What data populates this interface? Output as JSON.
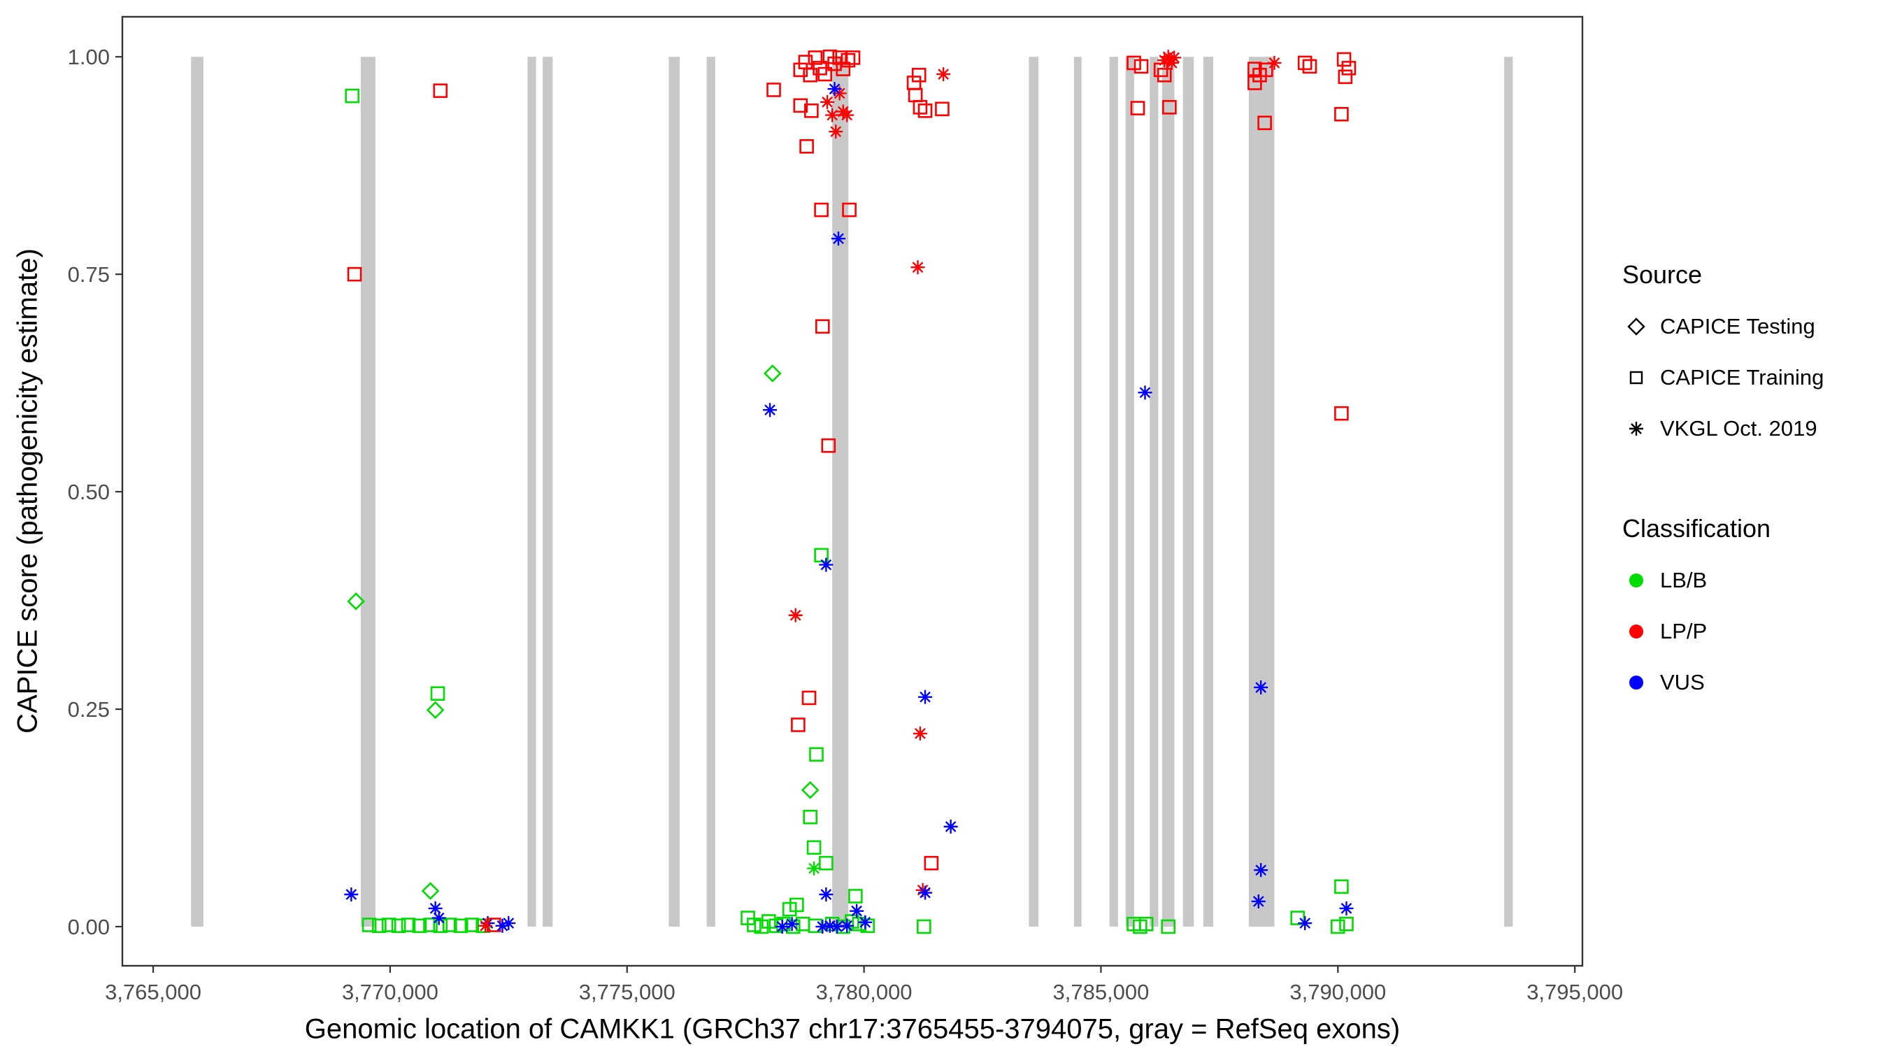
{
  "chart_data": {
    "type": "scatter",
    "title": "",
    "xlabel": "Genomic location of CAMKK1 (GRCh37 chr17:3765455-3794075, gray = RefSeq exons)",
    "ylabel": "CAPICE score (pathogenicity estimate)",
    "xlim": [
      3764350,
      3795160
    ],
    "ylim": [
      -0.045,
      1.046
    ],
    "grid": false,
    "x_ticks": [
      {
        "value": 3765000,
        "label": "3,765,000"
      },
      {
        "value": 3770000,
        "label": "3,770,000"
      },
      {
        "value": 3775000,
        "label": "3,775,000"
      },
      {
        "value": 3780000,
        "label": "3,780,000"
      },
      {
        "value": 3785000,
        "label": "3,785,000"
      },
      {
        "value": 3790000,
        "label": "3,790,000"
      },
      {
        "value": 3795000,
        "label": "3,795,000"
      }
    ],
    "y_ticks": [
      {
        "value": 0.0,
        "label": "0.00"
      },
      {
        "value": 0.25,
        "label": "0.25"
      },
      {
        "value": 0.5,
        "label": "0.50"
      },
      {
        "value": 0.75,
        "label": "0.75"
      },
      {
        "value": 1.0,
        "label": "1.00"
      }
    ],
    "exon_color": "#C8C8C8",
    "exons": [
      [
        3765800,
        3766060
      ],
      [
        3769380,
        3769690
      ],
      [
        3772900,
        3773080
      ],
      [
        3773220,
        3773430
      ],
      [
        3775880,
        3776110
      ],
      [
        3776680,
        3776860
      ],
      [
        3779330,
        3779670
      ],
      [
        3783480,
        3783680
      ],
      [
        3784430,
        3784590
      ],
      [
        3785180,
        3785360
      ],
      [
        3785520,
        3785700
      ],
      [
        3786030,
        3786210
      ],
      [
        3786290,
        3786550
      ],
      [
        3786730,
        3786960
      ],
      [
        3787160,
        3787370
      ],
      [
        3788120,
        3788660
      ],
      [
        3793510,
        3793690
      ]
    ],
    "legend": {
      "source_title": "Source",
      "sources": [
        {
          "id": "testing",
          "label": "CAPICE Testing",
          "shape": "diamond"
        },
        {
          "id": "training",
          "label": "CAPICE Training",
          "shape": "square"
        },
        {
          "id": "vkgl",
          "label": "VKGL Oct. 2019",
          "shape": "asterisk"
        }
      ],
      "class_title": "Classification",
      "classes": [
        {
          "id": "LB/B",
          "label": "LB/B",
          "color": "#00DD00"
        },
        {
          "id": "LP/P",
          "label": "LP/P",
          "color": "#FF0000"
        },
        {
          "id": "VUS",
          "label": "VUS",
          "color": "#0000FF"
        }
      ]
    },
    "points_format": [
      "genomic_position",
      "capice_score",
      "source",
      "classification"
    ],
    "points": [
      [
        3769200,
        0.955,
        "training",
        "LB/B"
      ],
      [
        3769250,
        0.75,
        "training",
        "LP/P"
      ],
      [
        3769280,
        0.374,
        "testing",
        "LB/B"
      ],
      [
        3769180,
        0.037,
        "vkgl",
        "VUS"
      ],
      [
        3769560,
        0.002,
        "training",
        "LB/B"
      ],
      [
        3769770,
        0.001,
        "training",
        "LB/B"
      ],
      [
        3769975,
        0.002,
        "training",
        "LB/B"
      ],
      [
        3770180,
        0.001,
        "training",
        "LB/B"
      ],
      [
        3770385,
        0.002,
        "training",
        "LB/B"
      ],
      [
        3770620,
        0.001,
        "training",
        "LB/B"
      ],
      [
        3770850,
        0.002,
        "training",
        "LB/B"
      ],
      [
        3771060,
        0.001,
        "training",
        "LB/B"
      ],
      [
        3771260,
        0.002,
        "training",
        "LB/B"
      ],
      [
        3771495,
        0.001,
        "training",
        "LB/B"
      ],
      [
        3771725,
        0.002,
        "training",
        "LB/B"
      ],
      [
        3771960,
        0.001,
        "training",
        "LB/B"
      ],
      [
        3771060,
        0.961,
        "training",
        "LP/P"
      ],
      [
        3771005,
        0.268,
        "training",
        "LB/B"
      ],
      [
        3770955,
        0.249,
        "testing",
        "LB/B"
      ],
      [
        3770850,
        0.041,
        "testing",
        "LB/B"
      ],
      [
        3770955,
        0.021,
        "vkgl",
        "VUS"
      ],
      [
        3771030,
        0.01,
        "vkgl",
        "VUS"
      ],
      [
        3772060,
        0.004,
        "vkgl",
        "VUS"
      ],
      [
        3772010,
        0.001,
        "vkgl",
        "LP/P"
      ],
      [
        3772190,
        0.002,
        "training",
        "LP/P"
      ],
      [
        3772370,
        0.001,
        "vkgl",
        "VUS"
      ],
      [
        3772500,
        0.004,
        "vkgl",
        "VUS"
      ],
      [
        3778095,
        0.962,
        "training",
        "LP/P"
      ],
      [
        3778660,
        0.985,
        "training",
        "LP/P"
      ],
      [
        3778765,
        0.994,
        "training",
        "LP/P"
      ],
      [
        3778865,
        0.979,
        "training",
        "LP/P"
      ],
      [
        3778970,
        0.999,
        "training",
        "LP/P"
      ],
      [
        3779070,
        0.987,
        "training",
        "LP/P"
      ],
      [
        3779175,
        0.98,
        "training",
        "LP/P"
      ],
      [
        3779280,
        1.0,
        "training",
        "LP/P"
      ],
      [
        3779380,
        0.992,
        "training",
        "LP/P"
      ],
      [
        3779485,
        0.999,
        "training",
        "LP/P"
      ],
      [
        3779560,
        0.986,
        "training",
        "LP/P"
      ],
      [
        3779665,
        0.996,
        "training",
        "LP/P"
      ],
      [
        3779770,
        0.999,
        "training",
        "LP/P"
      ],
      [
        3778660,
        0.944,
        "training",
        "LP/P"
      ],
      [
        3778890,
        0.938,
        "training",
        "LP/P"
      ],
      [
        3778790,
        0.897,
        "training",
        "LP/P"
      ],
      [
        3779225,
        0.948,
        "vkgl",
        "LP/P"
      ],
      [
        3779330,
        0.933,
        "vkgl",
        "LP/P"
      ],
      [
        3779405,
        0.914,
        "vkgl",
        "LP/P"
      ],
      [
        3779485,
        0.958,
        "vkgl",
        "LP/P"
      ],
      [
        3779560,
        0.937,
        "vkgl",
        "LP/P"
      ],
      [
        3779640,
        0.933,
        "vkgl",
        "LP/P"
      ],
      [
        3779380,
        0.963,
        "vkgl",
        "VUS"
      ],
      [
        3779100,
        0.824,
        "training",
        "LP/P"
      ],
      [
        3779690,
        0.824,
        "training",
        "LP/P"
      ],
      [
        3779460,
        0.791,
        "vkgl",
        "VUS"
      ],
      [
        3779125,
        0.69,
        "training",
        "LP/P"
      ],
      [
        3778070,
        0.636,
        "testing",
        "LB/B"
      ],
      [
        3778015,
        0.594,
        "vkgl",
        "VUS"
      ],
      [
        3779250,
        0.553,
        "training",
        "LP/P"
      ],
      [
        3779100,
        0.427,
        "training",
        "LB/B"
      ],
      [
        3779200,
        0.416,
        "vkgl",
        "VUS"
      ],
      [
        3778555,
        0.358,
        "vkgl",
        "LP/P"
      ],
      [
        3778840,
        0.263,
        "training",
        "LP/P"
      ],
      [
        3778610,
        0.232,
        "training",
        "LP/P"
      ],
      [
        3778995,
        0.198,
        "training",
        "LB/B"
      ],
      [
        3778865,
        0.157,
        "testing",
        "LB/B"
      ],
      [
        3778865,
        0.126,
        "training",
        "LB/B"
      ],
      [
        3778945,
        0.091,
        "training",
        "LB/B"
      ],
      [
        3778945,
        0.067,
        "vkgl",
        "LB/B"
      ],
      [
        3779200,
        0.073,
        "training",
        "LB/B"
      ],
      [
        3777550,
        0.01,
        "training",
        "LB/B"
      ],
      [
        3777680,
        0.002,
        "training",
        "LB/B"
      ],
      [
        3777835,
        0.0,
        "training",
        "LB/B"
      ],
      [
        3777990,
        0.006,
        "training",
        "LB/B"
      ],
      [
        3778145,
        0.001,
        "training",
        "LB/B"
      ],
      [
        3778300,
        0.003,
        "training",
        "LB/B"
      ],
      [
        3778430,
        0.02,
        "training",
        "LB/B"
      ],
      [
        3778580,
        0.025,
        "training",
        "LB/B"
      ],
      [
        3778505,
        0.0,
        "training",
        "LB/B"
      ],
      [
        3778710,
        0.003,
        "training",
        "LB/B"
      ],
      [
        3778970,
        0.001,
        "training",
        "LB/B"
      ],
      [
        3779330,
        0.003,
        "training",
        "LB/B"
      ],
      [
        3779560,
        0.0,
        "training",
        "LB/B"
      ],
      [
        3779745,
        0.006,
        "training",
        "LB/B"
      ],
      [
        3779900,
        0.003,
        "training",
        "LB/B"
      ],
      [
        3780075,
        0.001,
        "training",
        "LB/B"
      ],
      [
        3778275,
        0.0,
        "vkgl",
        "VUS"
      ],
      [
        3778480,
        0.003,
        "vkgl",
        "VUS"
      ],
      [
        3779125,
        0.0,
        "vkgl",
        "VUS"
      ],
      [
        3779280,
        0.001,
        "vkgl",
        "VUS"
      ],
      [
        3779430,
        0.0,
        "vkgl",
        "VUS"
      ],
      [
        3779640,
        0.001,
        "vkgl",
        "VUS"
      ],
      [
        3779845,
        0.018,
        "vkgl",
        "VUS"
      ],
      [
        3780025,
        0.005,
        "vkgl",
        "VUS"
      ],
      [
        3779200,
        0.037,
        "vkgl",
        "VUS"
      ],
      [
        3779820,
        0.035,
        "training",
        "LB/B"
      ],
      [
        3781055,
        0.97,
        "training",
        "LP/P"
      ],
      [
        3781160,
        0.979,
        "training",
        "LP/P"
      ],
      [
        3781085,
        0.956,
        "training",
        "LP/P"
      ],
      [
        3781185,
        0.942,
        "training",
        "LP/P"
      ],
      [
        3781290,
        0.938,
        "training",
        "LP/P"
      ],
      [
        3781675,
        0.98,
        "vkgl",
        "LP/P"
      ],
      [
        3781650,
        0.94,
        "training",
        "LP/P"
      ],
      [
        3781135,
        0.758,
        "vkgl",
        "LP/P"
      ],
      [
        3781290,
        0.264,
        "vkgl",
        "VUS"
      ],
      [
        3781185,
        0.222,
        "vkgl",
        "LP/P"
      ],
      [
        3781830,
        0.115,
        "vkgl",
        "VUS"
      ],
      [
        3781420,
        0.073,
        "training",
        "LP/P"
      ],
      [
        3781240,
        0.042,
        "vkgl",
        "LP/P"
      ],
      [
        3781290,
        0.039,
        "vkgl",
        "VUS"
      ],
      [
        3781265,
        0.0,
        "training",
        "LB/B"
      ],
      [
        3785695,
        0.993,
        "training",
        "LP/P"
      ],
      [
        3785850,
        0.989,
        "training",
        "LP/P"
      ],
      [
        3785775,
        0.941,
        "training",
        "LP/P"
      ],
      [
        3786340,
        0.996,
        "vkgl",
        "LP/P"
      ],
      [
        3786420,
        1.0,
        "vkgl",
        "LP/P"
      ],
      [
        3786495,
        0.993,
        "vkgl",
        "LP/P"
      ],
      [
        3786545,
        0.999,
        "vkgl",
        "LP/P"
      ],
      [
        3786265,
        0.985,
        "training",
        "LP/P"
      ],
      [
        3786340,
        0.979,
        "training",
        "LP/P"
      ],
      [
        3786445,
        0.942,
        "training",
        "LP/P"
      ],
      [
        3785930,
        0.614,
        "vkgl",
        "VUS"
      ],
      [
        3785695,
        0.003,
        "training",
        "LB/B"
      ],
      [
        3785825,
        0.0,
        "training",
        "LB/B"
      ],
      [
        3785955,
        0.003,
        "training",
        "LB/B"
      ],
      [
        3786420,
        0.0,
        "training",
        "LB/B"
      ],
      [
        3788245,
        0.986,
        "training",
        "LP/P"
      ],
      [
        3788350,
        0.979,
        "training",
        "LP/P"
      ],
      [
        3788245,
        0.97,
        "training",
        "LP/P"
      ],
      [
        3788480,
        0.985,
        "training",
        "LP/P"
      ],
      [
        3788660,
        0.993,
        "vkgl",
        "LP/P"
      ],
      [
        3788455,
        0.924,
        "training",
        "LP/P"
      ],
      [
        3789305,
        0.993,
        "training",
        "LP/P"
      ],
      [
        3789405,
        0.989,
        "training",
        "LP/P"
      ],
      [
        3790130,
        0.997,
        "training",
        "LP/P"
      ],
      [
        3790230,
        0.987,
        "training",
        "LP/P"
      ],
      [
        3790155,
        0.977,
        "training",
        "LP/P"
      ],
      [
        3790075,
        0.934,
        "training",
        "LP/P"
      ],
      [
        3790075,
        0.59,
        "training",
        "LP/P"
      ],
      [
        3788375,
        0.275,
        "vkgl",
        "VUS"
      ],
      [
        3788375,
        0.065,
        "vkgl",
        "VUS"
      ],
      [
        3788325,
        0.029,
        "vkgl",
        "VUS"
      ],
      [
        3789150,
        0.01,
        "training",
        "LB/B"
      ],
      [
        3789305,
        0.004,
        "vkgl",
        "VUS"
      ],
      [
        3790075,
        0.046,
        "training",
        "LB/B"
      ],
      [
        3790000,
        0.0,
        "training",
        "LB/B"
      ],
      [
        3790180,
        0.003,
        "training",
        "LB/B"
      ],
      [
        3790180,
        0.021,
        "vkgl",
        "VUS"
      ]
    ]
  }
}
